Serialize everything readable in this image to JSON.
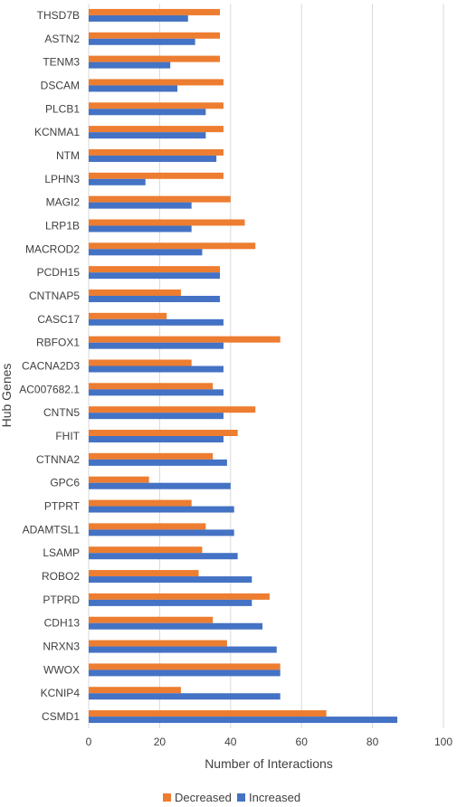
{
  "colors": {
    "decreased": "#ED7D31",
    "increased": "#4472C4",
    "grid": "#d9d9d9",
    "text": "#404040"
  },
  "chart_data": {
    "type": "bar",
    "orientation": "horizontal",
    "xlabel": "Number of Interactions",
    "ylabel": "Hub Genes",
    "xlim": [
      0,
      100
    ],
    "xticks": [
      "0",
      "20",
      "40",
      "60",
      "80",
      "100"
    ],
    "grid": "vertical",
    "legend": "bottom",
    "categories": [
      "THSD7B",
      "ASTN2",
      "TENM3",
      "DSCAM",
      "PLCB1",
      "KCNMA1",
      "NTM",
      "LPHN3",
      "MAGI2",
      "LRP1B",
      "MACROD2",
      "PCDH15",
      "CNTNAP5",
      "CASC17",
      "RBFOX1",
      "CACNA2D3",
      "AC007682.1",
      "CNTN5",
      "FHIT",
      "CTNNA2",
      "GPC6",
      "PTPRT",
      "ADAMTSL1",
      "LSAMP",
      "ROBO2",
      "PTPRD",
      "CDH13",
      "NRXN3",
      "WWOX",
      "KCNIP4",
      "CSMD1"
    ],
    "series": [
      {
        "name": "Decreased",
        "values": [
          37,
          37,
          37,
          38,
          38,
          38,
          38,
          38,
          40,
          44,
          47,
          37,
          26,
          22,
          54,
          29,
          35,
          47,
          42,
          35,
          17,
          29,
          33,
          32,
          31,
          51,
          35,
          39,
          54,
          26,
          67
        ]
      },
      {
        "name": "Increased",
        "values": [
          28,
          30,
          23,
          25,
          33,
          33,
          36,
          16,
          29,
          29,
          32,
          37,
          37,
          38,
          38,
          38,
          38,
          38,
          38,
          39,
          40,
          41,
          41,
          42,
          46,
          46,
          49,
          53,
          54,
          54,
          87
        ]
      }
    ]
  }
}
